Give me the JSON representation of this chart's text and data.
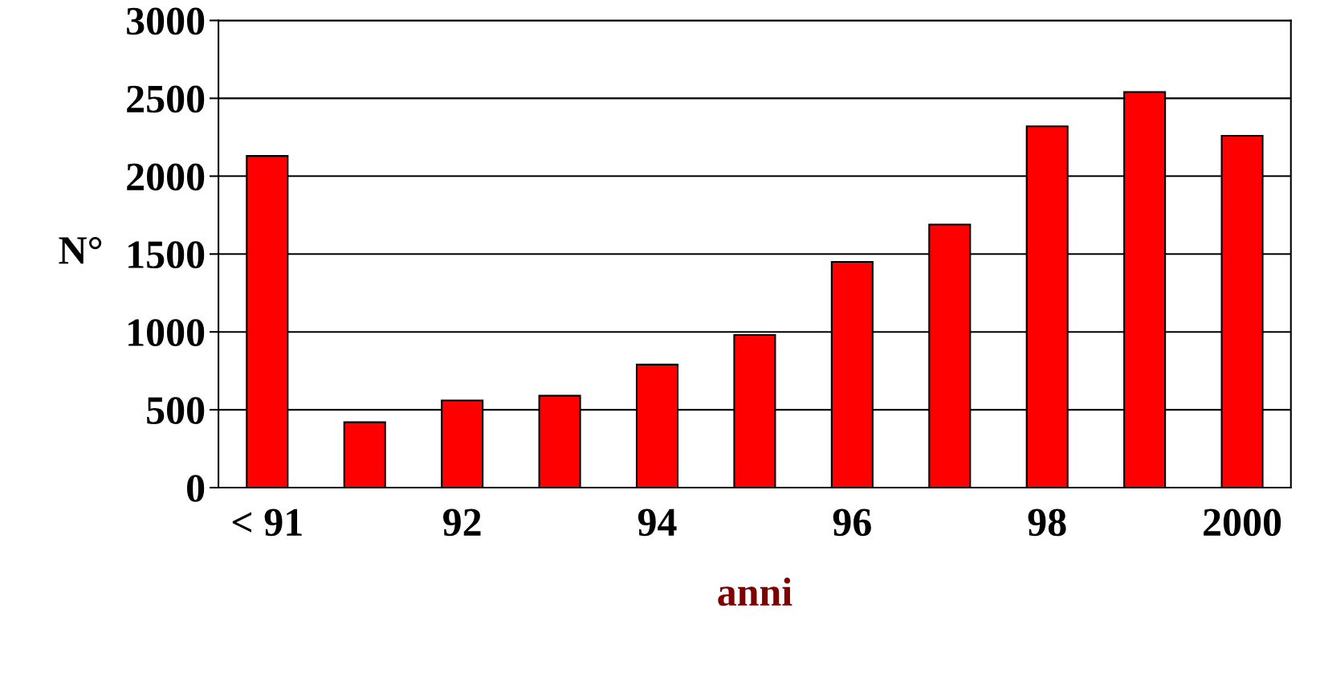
{
  "chart_data": {
    "type": "bar",
    "xlabel": "anni",
    "ylabel": "N°",
    "categories": [
      "< 91",
      null,
      "92",
      null,
      "94",
      null,
      "96",
      null,
      "98",
      null,
      "2000"
    ],
    "values": [
      2130,
      420,
      560,
      590,
      790,
      980,
      1450,
      1690,
      2320,
      2540,
      2260
    ],
    "color": "#ff0000",
    "ylim": [
      0,
      3000
    ],
    "yticks": [
      0,
      500,
      1000,
      1500,
      2000,
      2500,
      3000
    ],
    "grid": "y"
  }
}
